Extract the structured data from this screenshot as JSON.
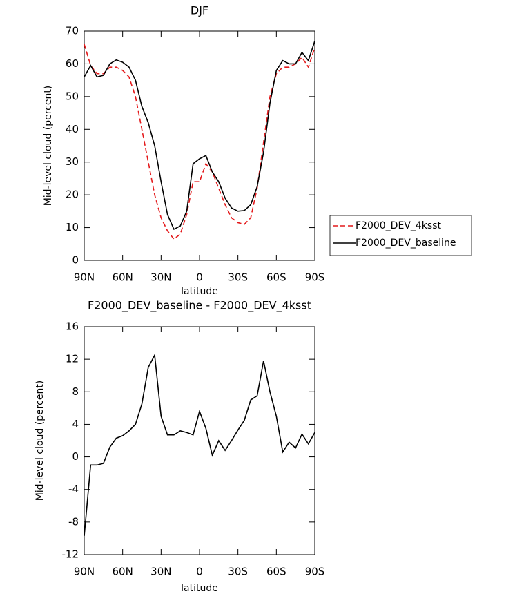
{
  "chart_data": [
    {
      "type": "line",
      "title": "DJF",
      "xlabel": "latitude",
      "ylabel": "Mid-level cloud (percent)",
      "x": [
        90,
        85,
        80,
        75,
        70,
        65,
        60,
        55,
        50,
        45,
        40,
        35,
        30,
        25,
        20,
        15,
        10,
        5,
        0,
        -5,
        -10,
        -15,
        -20,
        -25,
        -30,
        -35,
        -40,
        -45,
        -50,
        -55,
        -60,
        -65,
        -70,
        -75,
        -80,
        -85,
        -90
      ],
      "xlim": [
        90,
        -90
      ],
      "xticks": [
        {
          "value": 90,
          "label": "90N"
        },
        {
          "value": 60,
          "label": "60N"
        },
        {
          "value": 30,
          "label": "30N"
        },
        0,
        {
          "value": -30,
          "label": "30S"
        },
        {
          "value": -60,
          "label": "60S"
        },
        {
          "value": -90,
          "label": "90S"
        }
      ],
      "ylim": [
        0,
        70
      ],
      "yticks": [
        0,
        10,
        20,
        30,
        40,
        50,
        60,
        70
      ],
      "legend": "right",
      "series": [
        {
          "name": "F2000_DEV_4ksst",
          "color": "#e41a1c",
          "dash": "dashed",
          "values": [
            66,
            59.5,
            57,
            57,
            59,
            59,
            58,
            56,
            50,
            40,
            30,
            20,
            13,
            9,
            6.5,
            8,
            14,
            24,
            24,
            29.5,
            27,
            22,
            17,
            13,
            11.5,
            11,
            13,
            22,
            36,
            50,
            57,
            59,
            59,
            60,
            62,
            59,
            65
          ]
        },
        {
          "name": "F2000_DEV_baseline",
          "color": "#000000",
          "dash": "solid",
          "values": [
            56,
            59.5,
            56,
            56.5,
            60,
            61.2,
            60.5,
            59,
            55,
            47,
            42,
            35,
            24,
            14,
            9.5,
            10.5,
            15,
            29.5,
            31,
            32,
            27,
            24,
            19,
            16,
            15,
            15.2,
            17,
            22.5,
            33,
            48,
            58,
            61,
            60,
            60,
            63.5,
            61,
            67
          ]
        }
      ]
    },
    {
      "type": "line",
      "title": "F2000_DEV_baseline - F2000_DEV_4ksst",
      "xlabel": "latitude",
      "ylabel": "Mid-level cloud (percent)",
      "x": [
        90,
        85,
        80,
        75,
        70,
        65,
        60,
        55,
        50,
        45,
        40,
        35,
        30,
        25,
        20,
        15,
        10,
        5,
        0,
        -5,
        -10,
        -15,
        -20,
        -25,
        -30,
        -35,
        -40,
        -45,
        -50,
        -55,
        -60,
        -65,
        -70,
        -75,
        -80,
        -85,
        -90
      ],
      "xlim": [
        90,
        -90
      ],
      "xticks": [
        {
          "value": 90,
          "label": "90N"
        },
        {
          "value": 60,
          "label": "60N"
        },
        {
          "value": 30,
          "label": "30N"
        },
        0,
        {
          "value": -30,
          "label": "30S"
        },
        {
          "value": -60,
          "label": "60S"
        },
        {
          "value": -90,
          "label": "90S"
        }
      ],
      "ylim": [
        -12,
        16
      ],
      "yticks": [
        -12,
        -8,
        -4,
        0,
        4,
        8,
        12,
        16
      ],
      "series": [
        {
          "color": "#000000",
          "dash": "solid",
          "values": [
            -9.7,
            -1,
            -1,
            -0.8,
            1.2,
            2.3,
            2.6,
            3.2,
            4,
            6.5,
            11,
            12.5,
            5,
            2.7,
            2.7,
            3.2,
            3,
            2.7,
            5.6,
            3.5,
            0.2,
            2,
            0.8,
            2,
            3.3,
            4.5,
            7,
            7.5,
            11.8,
            8,
            5,
            0.6,
            1.8,
            1.1,
            2.8,
            1.6,
            3
          ]
        }
      ]
    }
  ]
}
